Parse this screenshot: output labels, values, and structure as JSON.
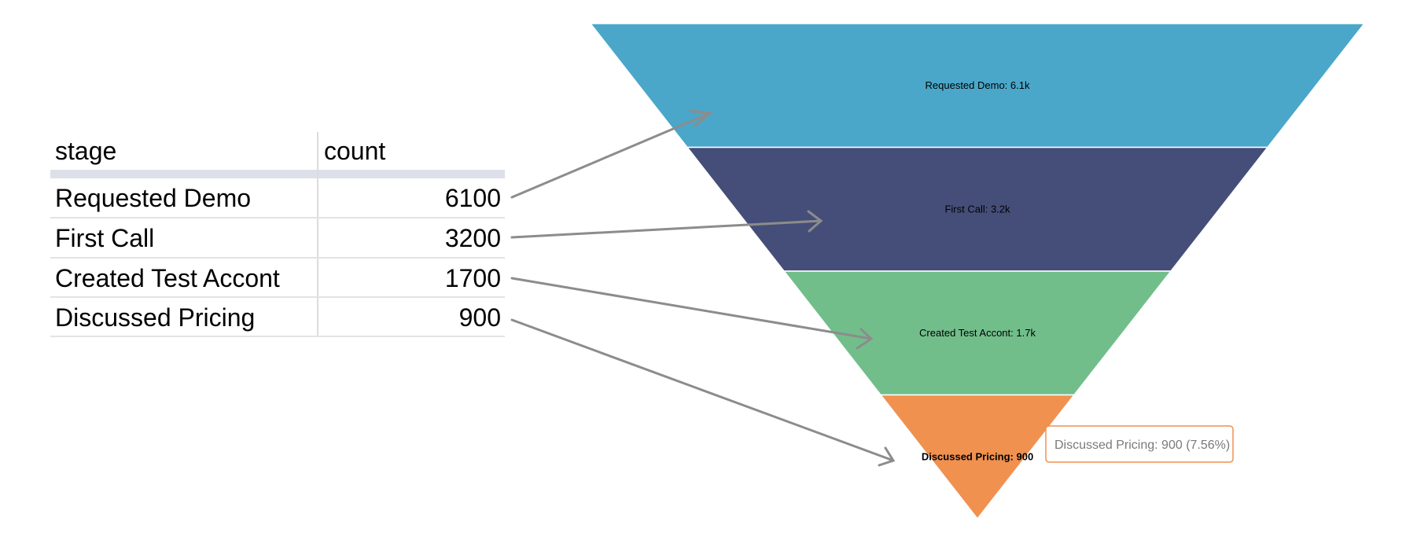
{
  "table": {
    "columns": [
      "stage",
      "count"
    ],
    "rows": [
      {
        "stage": "Requested Demo",
        "count": "6100"
      },
      {
        "stage": "First Call",
        "count": "3200"
      },
      {
        "stage": "Created Test Accont",
        "count": "1700"
      },
      {
        "stage": "Discussed Pricing",
        "count": "900"
      }
    ]
  },
  "chart_data": {
    "type": "funnel",
    "categories": [
      "Requested Demo",
      "First Call",
      "Created Test Accont",
      "Discussed Pricing"
    ],
    "values": [
      6100,
      3200,
      1700,
      900
    ],
    "segment_labels": [
      "Requested Demo: 6.1k",
      "First Call: 3.2k",
      "Created Test Accont: 1.7k",
      "Discussed Pricing: 900"
    ],
    "highlighted_index": 3,
    "tooltip": "Discussed Pricing: 900 (7.56%)",
    "colors": [
      "#4aa7c9",
      "#454e78",
      "#72be8b",
      "#f09150"
    ],
    "arrow_color": "#8c8c8c",
    "tooltip_border_color": "#f09150"
  }
}
